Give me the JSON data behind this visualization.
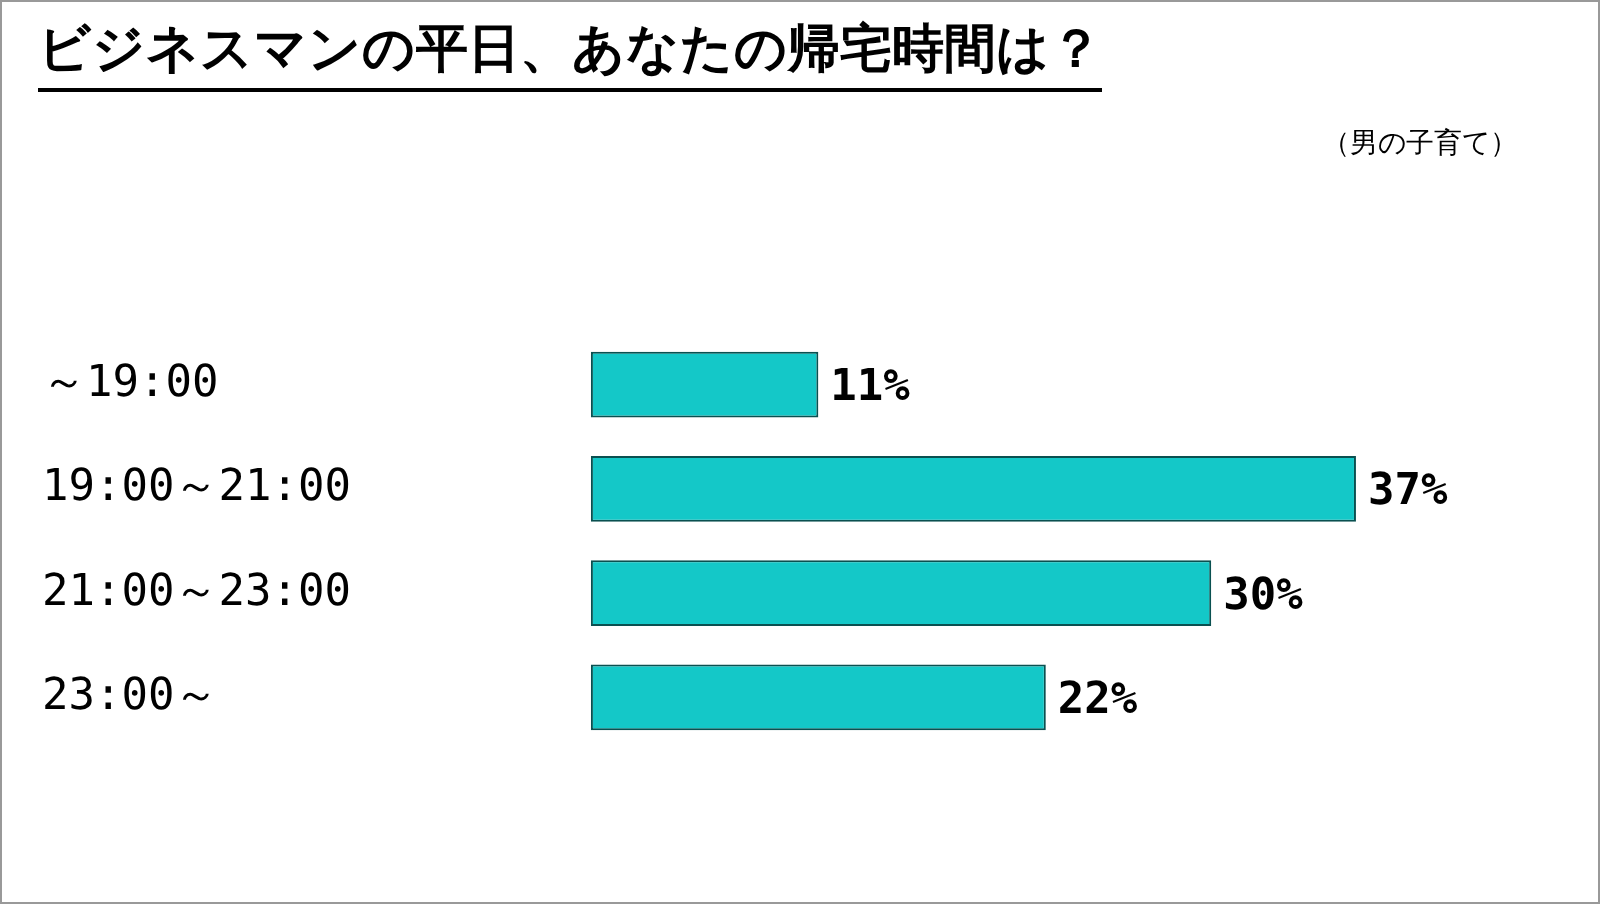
{
  "chart_data": {
    "type": "bar",
    "orientation": "horizontal",
    "title": "ビジネスマンの平日、あなたの帰宅時間は？",
    "annotations": [
      "（男の子育て）"
    ],
    "categories": [
      "～19:00",
      "19:00～21:00",
      "21:00～23:00",
      "23:00～"
    ],
    "values": [
      11,
      37,
      30,
      22
    ],
    "color": "#14c8c8",
    "value_labels": [
      "11%",
      "37%",
      "30%",
      "22%"
    ],
    "grid": false,
    "legend": false,
    "tick_labels": "y"
  }
}
